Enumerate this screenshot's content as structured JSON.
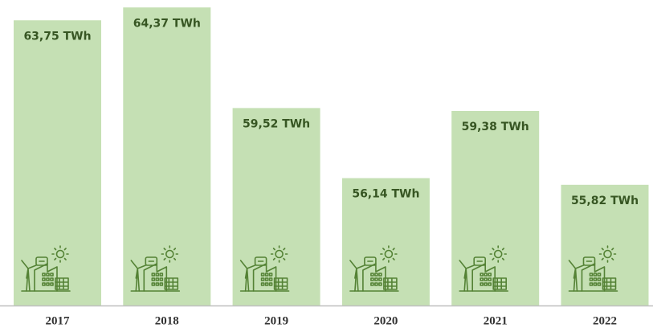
{
  "chart_data": {
    "type": "bar",
    "categories": [
      "2017",
      "2018",
      "2019",
      "2020",
      "2021",
      "2022"
    ],
    "values": [
      63.75,
      64.37,
      59.52,
      56.14,
      59.38,
      55.82
    ],
    "value_labels": [
      "63,75 TWh",
      "64,37 TWh",
      "59,52 TWh",
      "56,14 TWh",
      "59,38 TWh",
      "55,82 TWh"
    ],
    "color": "#c5e0b4",
    "ylim": [
      50,
      65
    ]
  }
}
